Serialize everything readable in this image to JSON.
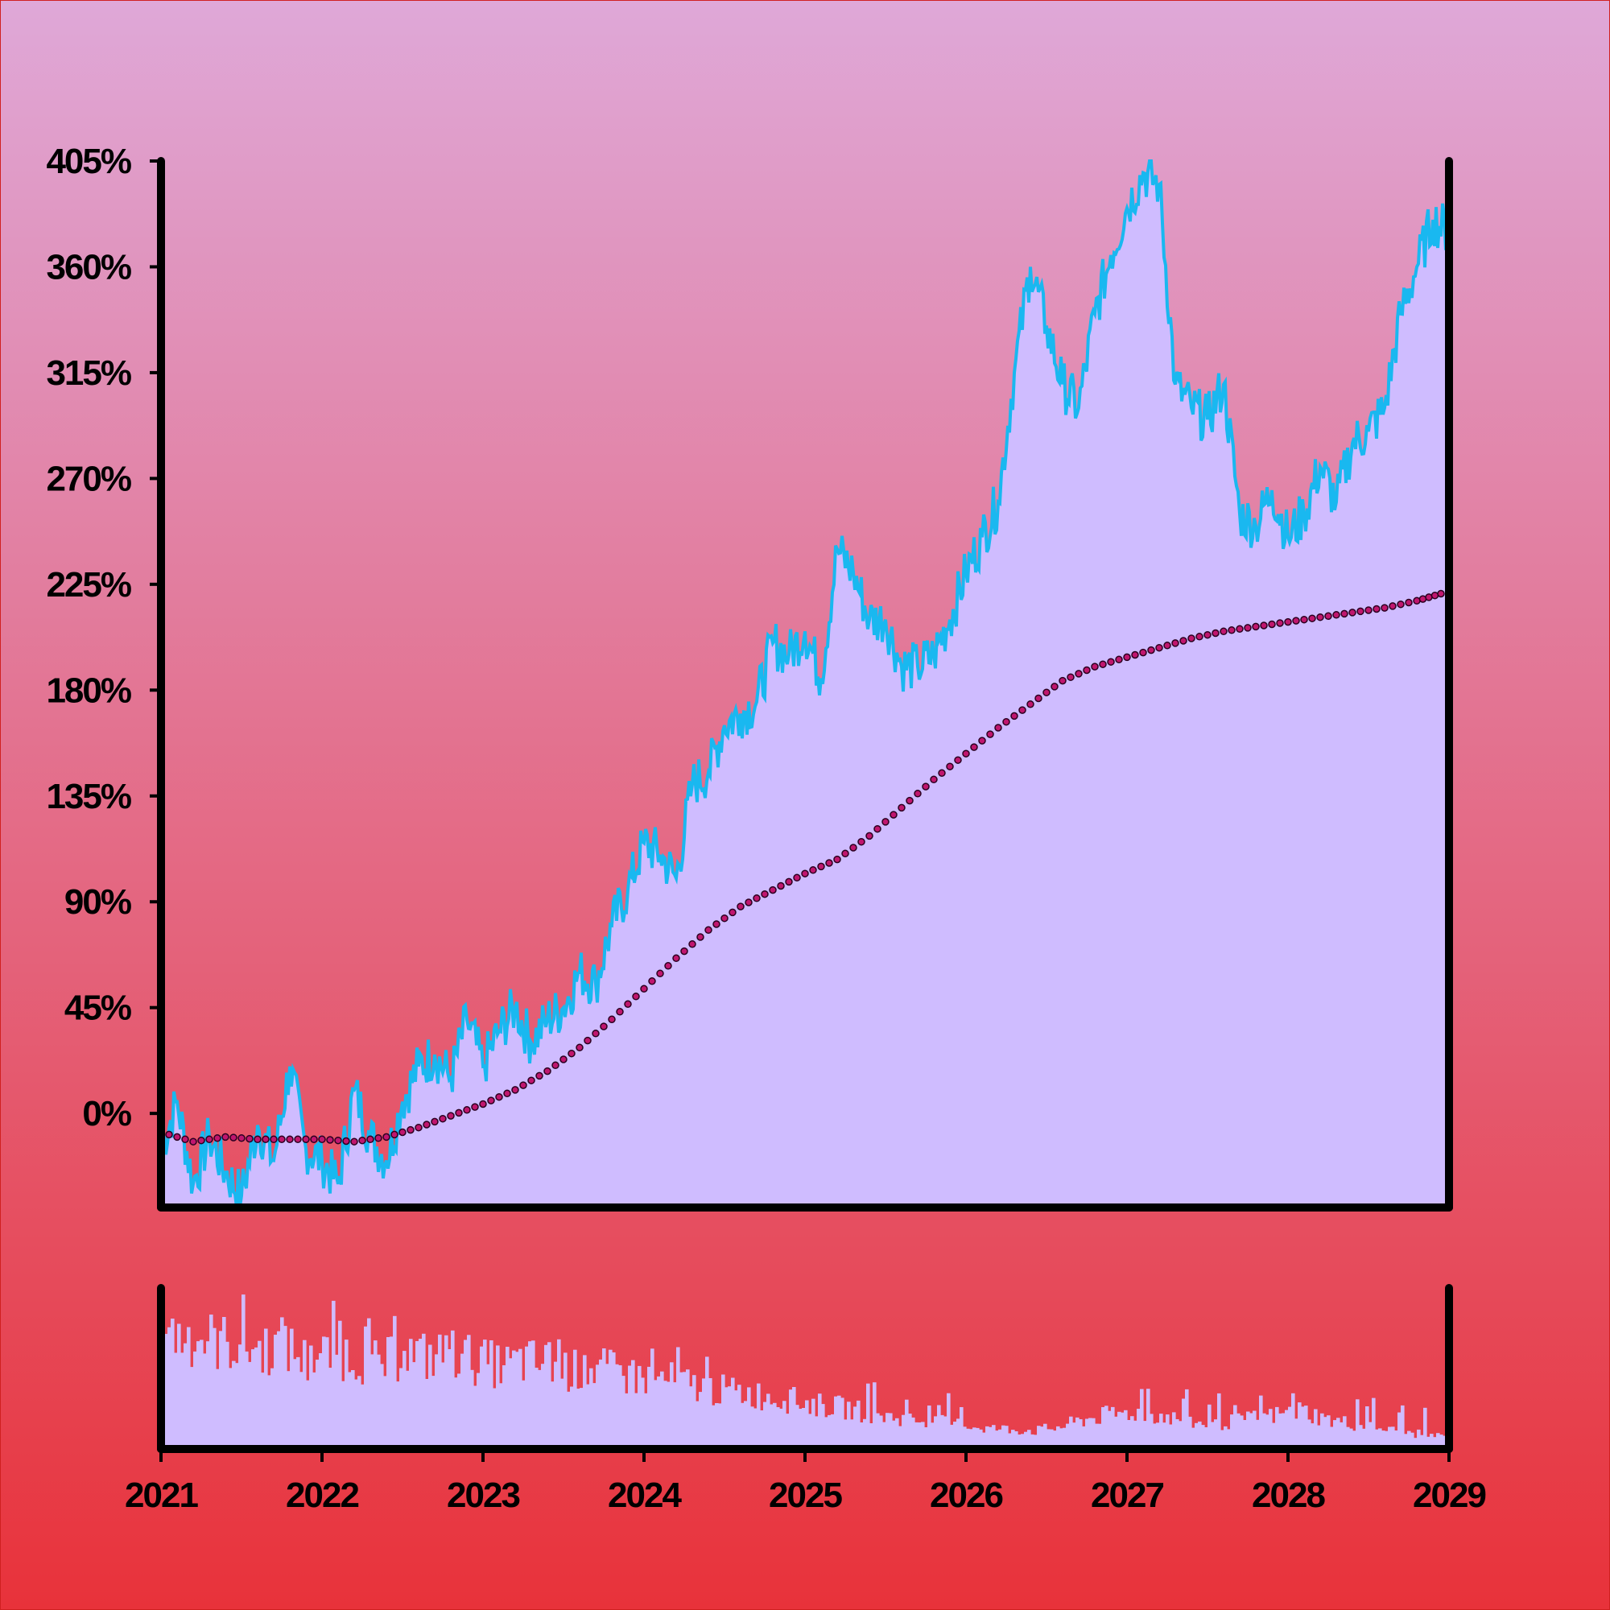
{
  "chart_data": {
    "type": "area",
    "title": "",
    "xlabel": "",
    "ylabel": "",
    "x_ticks": [
      "2021",
      "2022",
      "2023",
      "2024",
      "2025",
      "2026",
      "2027",
      "2028",
      "2029"
    ],
    "y_ticks": [
      "0%",
      "45%",
      "90%",
      "135%",
      "180%",
      "225%",
      "270%",
      "315%",
      "360%",
      "405%"
    ],
    "xlim": [
      2021.0,
      2029.0
    ],
    "ylim": [
      -40,
      405
    ],
    "grid": false,
    "legend": "none",
    "background_gradient": [
      "#dfa8d8",
      "#e8323a"
    ],
    "colors": {
      "area_fill": "#cfbcff",
      "price_line": "#19b8f0",
      "trend_marker": "#c0166e",
      "axis": "#000000"
    },
    "series": [
      {
        "type": "area-line",
        "x": [
          2021.0,
          2021.1,
          2021.2,
          2021.3,
          2021.4,
          2021.5,
          2021.6,
          2021.7,
          2021.8,
          2021.9,
          2022.0,
          2022.1,
          2022.2,
          2022.3,
          2022.4,
          2022.5,
          2022.6,
          2022.7,
          2022.8,
          2022.9,
          2023.0,
          2023.1,
          2023.2,
          2023.3,
          2023.4,
          2023.5,
          2023.6,
          2023.7,
          2023.8,
          2023.9,
          2024.0,
          2024.1,
          2024.2,
          2024.3,
          2024.4,
          2024.5,
          2024.6,
          2024.7,
          2024.8,
          2024.9,
          2025.0,
          2025.1,
          2025.2,
          2025.3,
          2025.4,
          2025.5,
          2025.6,
          2025.7,
          2025.8,
          2025.9,
          2026.0,
          2026.1,
          2026.2,
          2026.3,
          2026.4,
          2026.5,
          2026.6,
          2026.7,
          2026.8,
          2026.9,
          2027.0,
          2027.1,
          2027.2,
          2027.3,
          2027.4,
          2027.5,
          2027.6,
          2027.7,
          2027.8,
          2027.9,
          2028.0,
          2028.1,
          2028.2,
          2028.3,
          2028.4,
          2028.5,
          2028.6,
          2028.7,
          2028.8,
          2028.9,
          2029.0
        ],
        "values": [
          -15,
          5,
          -30,
          -10,
          -25,
          -35,
          -5,
          -20,
          20,
          -15,
          -20,
          -30,
          10,
          -10,
          -20,
          5,
          20,
          25,
          15,
          40,
          20,
          35,
          45,
          30,
          40,
          45,
          60,
          55,
          80,
          95,
          115,
          110,
          100,
          140,
          145,
          165,
          170,
          175,
          200,
          195,
          205,
          185,
          240,
          230,
          210,
          210,
          190,
          190,
          195,
          210,
          230,
          245,
          260,
          315,
          360,
          335,
          310,
          300,
          340,
          365,
          385,
          400,
          395,
          310,
          300,
          295,
          310,
          255,
          250,
          265,
          245,
          255,
          275,
          260,
          285,
          290,
          300,
          340,
          360,
          380,
          375
        ]
      },
      {
        "type": "dotted-trend",
        "x": [
          2021.0,
          2021.2,
          2021.4,
          2021.6,
          2021.8,
          2022.0,
          2022.2,
          2022.4,
          2022.6,
          2022.8,
          2023.0,
          2023.2,
          2023.4,
          2023.6,
          2023.8,
          2024.0,
          2024.2,
          2024.4,
          2024.6,
          2024.8,
          2025.0,
          2025.2,
          2025.4,
          2025.6,
          2025.8,
          2026.0,
          2026.2,
          2026.4,
          2026.6,
          2026.8,
          2027.0,
          2027.2,
          2027.4,
          2027.6,
          2027.8,
          2028.0,
          2028.2,
          2028.4,
          2028.6,
          2028.8,
          2028.95
        ],
        "values": [
          -8,
          -12,
          -10,
          -11,
          -11,
          -11,
          -12,
          -10,
          -6,
          -1,
          4,
          10,
          18,
          28,
          40,
          53,
          66,
          78,
          88,
          95,
          102,
          108,
          118,
          130,
          142,
          153,
          164,
          174,
          184,
          190,
          194,
          198,
          202,
          205,
          207,
          209,
          211,
          213,
          215,
          218,
          221
        ]
      },
      {
        "type": "volume-bars",
        "values": [
          0.92,
          0.94,
          0.89,
          0.86,
          0.82,
          0.86,
          0.71,
          0.8,
          0.76,
          0.68,
          0.8,
          0.75,
          0.79,
          0.72,
          0.68,
          0.72,
          0.69,
          0.64,
          0.66,
          0.61,
          0.58,
          0.56,
          0.52,
          0.48,
          0.46,
          0.43,
          0.4,
          0.36,
          0.34,
          0.3,
          0.26,
          0.24,
          0.22,
          0.2,
          0.17,
          0.16,
          0.15,
          0.18,
          0.24,
          0.28,
          0.3,
          0.28,
          0.24,
          0.2,
          0.22,
          0.25,
          0.28,
          0.32,
          0.24,
          0.21,
          0.18,
          0.14,
          0.12,
          0.1
        ]
      }
    ]
  }
}
